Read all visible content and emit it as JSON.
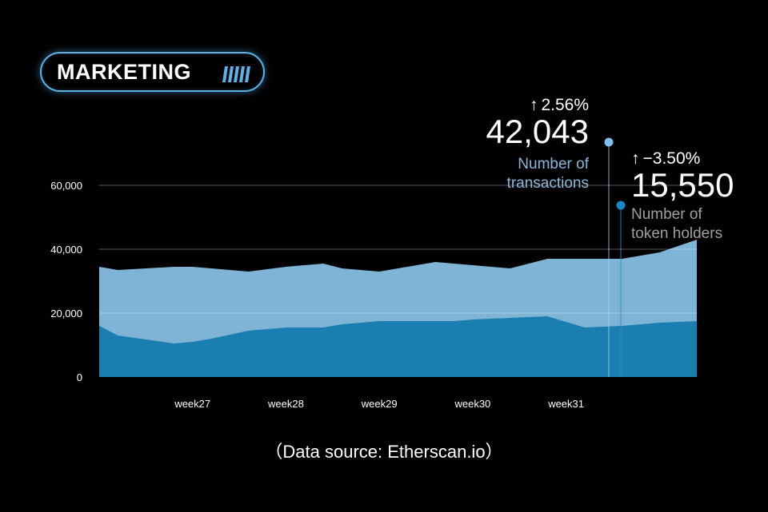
{
  "header": {
    "badge_label": "MARKETING",
    "badge_icon": "stripes-icon"
  },
  "chart_data": {
    "type": "area",
    "title": "",
    "xlabel": "",
    "ylabel": "",
    "ylim": [
      0,
      68000
    ],
    "yticks": [
      0,
      20000,
      40000,
      60000
    ],
    "ytick_labels": [
      "0",
      "20,000",
      "40,000",
      "60,000"
    ],
    "xtick_labels": [
      "week27",
      "week28",
      "week29",
      "week30",
      "week31"
    ],
    "grid": true,
    "x": [
      0,
      0.2,
      0.8,
      1.0,
      1.2,
      1.6,
      2.0,
      2.4,
      2.6,
      3.0,
      3.4,
      3.6,
      3.8,
      4.0,
      4.4,
      4.8,
      5.2,
      5.6,
      6.0,
      6.4
    ],
    "series": [
      {
        "name": "Number of transactions",
        "color": "#7fb4d6",
        "values": [
          34500,
          33500,
          34500,
          34500,
          34000,
          33000,
          34500,
          35500,
          34000,
          33000,
          35000,
          36000,
          35500,
          35000,
          34000,
          37000,
          37000,
          37000,
          39000,
          43000
        ]
      },
      {
        "name": "Number of token holders",
        "color": "#1a7fb0",
        "values": [
          16000,
          13000,
          10500,
          11000,
          12000,
          14500,
          15500,
          15500,
          16500,
          17500,
          17500,
          17500,
          17500,
          18000,
          18500,
          19000,
          15500,
          16000,
          17000,
          17500
        ]
      }
    ]
  },
  "callouts": [
    {
      "change": "2.56%",
      "value": "42,043",
      "label_line1": "Number of",
      "label_line2": "transactions",
      "dot_color": "#7fc1ec"
    },
    {
      "change": "−3.50%",
      "value": "15,550",
      "label_line1": "Number of",
      "label_line2": "token holders",
      "dot_color": "#1a88c4"
    }
  ],
  "footer": {
    "source": "（Data source: Etherscan.io）"
  }
}
